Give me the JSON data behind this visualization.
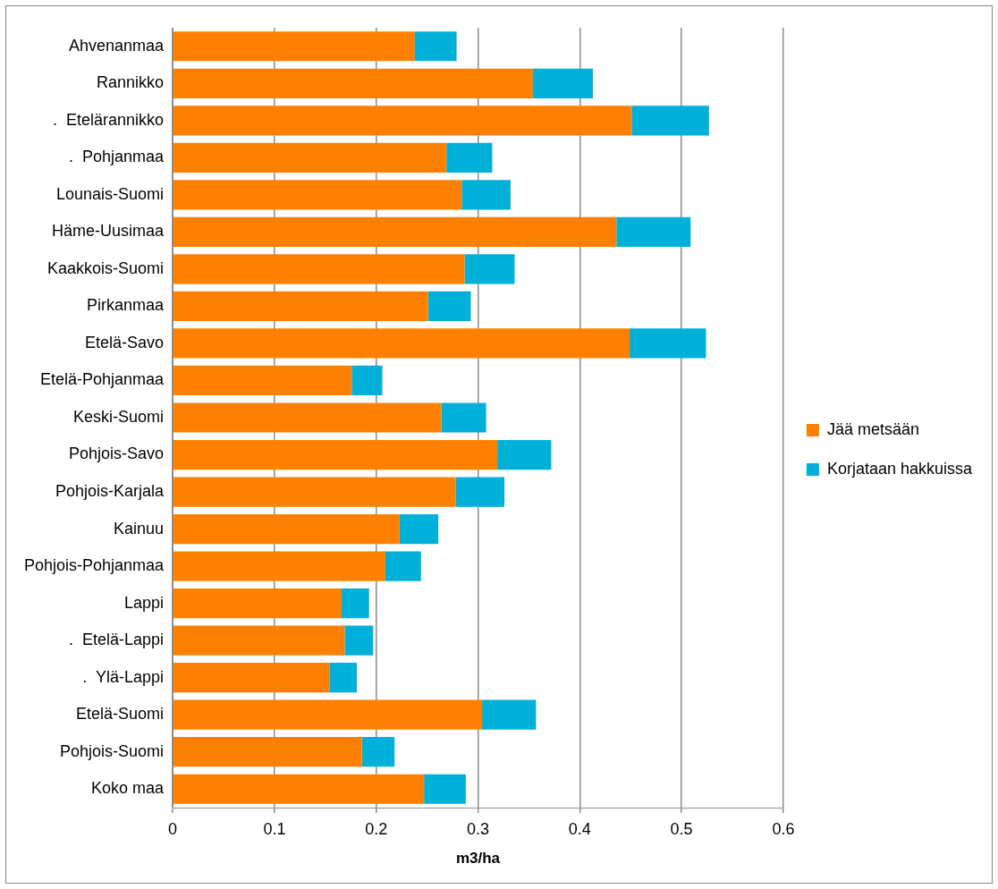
{
  "chart_data": {
    "type": "bar",
    "orientation": "horizontal",
    "stacked": true,
    "xlabel": "m3/ha",
    "categories": [
      "Ahvenanmaa",
      "Rannikko",
      ".  Etelärannikko",
      ".  Pohjanmaa",
      "Lounais-Suomi",
      "Häme-Uusimaa",
      "Kaakkois-Suomi",
      "Pirkanmaa",
      "Etelä-Savo",
      "Etelä-Pohjanmaa",
      "Keski-Suomi",
      "Pohjois-Savo",
      "Pohjois-Karjala",
      "Kainuu",
      "Pohjois-Pohjanmaa",
      "Lappi",
      ".  Etelä-Lappi",
      ".  Ylä-Lappi",
      "Etelä-Suomi",
      "Pohjois-Suomi",
      "Koko maa"
    ],
    "series": [
      {
        "name": "Jää metsään",
        "color": "#ff8000",
        "values": [
          0.238,
          0.354,
          0.451,
          0.269,
          0.284,
          0.436,
          0.287,
          0.251,
          0.449,
          0.176,
          0.264,
          0.319,
          0.278,
          0.223,
          0.209,
          0.166,
          0.169,
          0.154,
          0.304,
          0.186,
          0.247
        ]
      },
      {
        "name": "Korjataan hakkuissa",
        "color": "#00b0d8",
        "values": [
          0.041,
          0.059,
          0.076,
          0.045,
          0.048,
          0.073,
          0.049,
          0.042,
          0.075,
          0.03,
          0.044,
          0.053,
          0.048,
          0.038,
          0.035,
          0.027,
          0.028,
          0.027,
          0.053,
          0.032,
          0.041
        ]
      }
    ],
    "xlim": [
      0,
      0.6
    ],
    "xticks": [
      0,
      0.1,
      0.2,
      0.3,
      0.4,
      0.5,
      0.6
    ],
    "grid": "x",
    "legend": "right"
  }
}
